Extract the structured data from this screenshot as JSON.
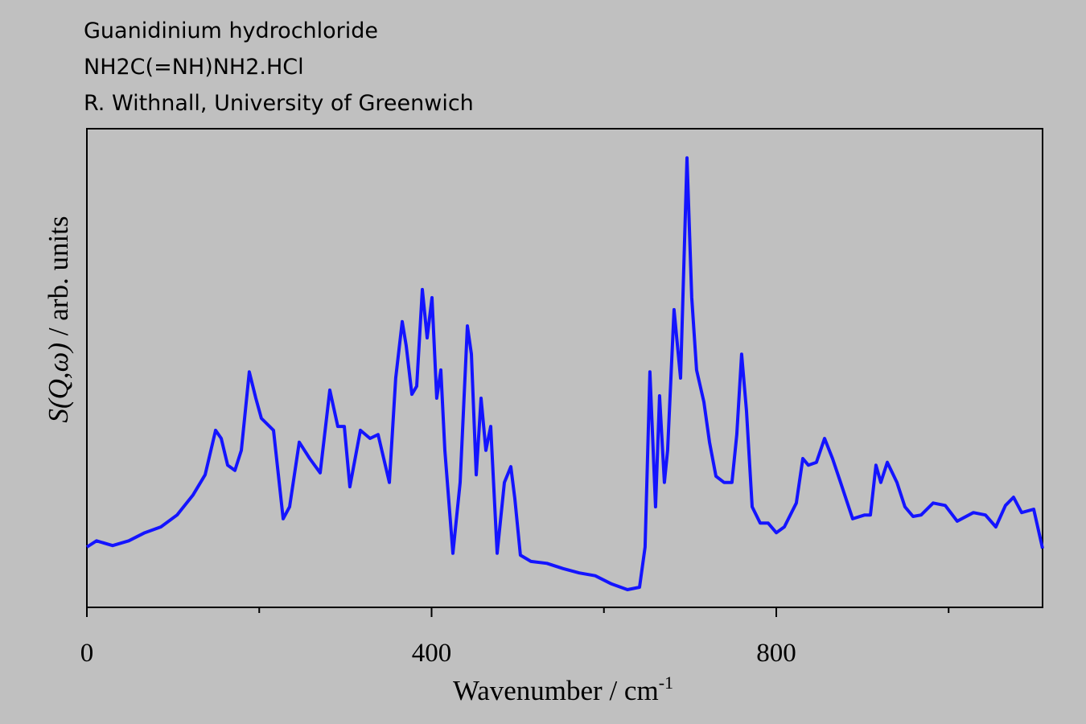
{
  "chart_data": {
    "type": "line",
    "title_lines": [
      "Guanidinium hydrochloride",
      "NH2C(=NH)NH2.HCl",
      "R. Withnall, University of Greenwich"
    ],
    "x_label": "Wavenumber / cm",
    "x_label_sup": "-1",
    "y_label_italic": "S(Q,ω)",
    "y_label_rest": " / arb. units",
    "xlim": [
      0,
      1109
    ],
    "ylim": [
      0,
      100
    ],
    "xticks": [
      0,
      400,
      800
    ],
    "xminor_ticks": [
      200,
      600,
      1000
    ],
    "series": [
      {
        "color": "#1414ff",
        "x": [
          0,
          11.2,
          29.9,
          48.5,
          67.2,
          85.9,
          104.6,
          123.2,
          137.2,
          149.4,
          155.9,
          163.4,
          171.8,
          179.2,
          188.5,
          196.0,
          202.5,
          216.6,
          227.8,
          235.2,
          246.4,
          258.6,
          270.7,
          281.9,
          291.2,
          298.7,
          305.2,
          317.4,
          328.6,
          337.9,
          351.0,
          358.4,
          365.9,
          370.6,
          377.1,
          382.7,
          389.3,
          394.9,
          400.5,
          406.0,
          410.7,
          415.4,
          424.7,
          433.1,
          441.5,
          446.2,
          451.8,
          457.4,
          463.0,
          468.6,
          476.1,
          484.5,
          492.0,
          496.6,
          503.1,
          515.3,
          533.9,
          552.6,
          571.3,
          589.9,
          608.6,
          627.3,
          641.3,
          647.8,
          653.4,
          659.9,
          664.6,
          670.2,
          673.9,
          681.4,
          688.9,
          696.4,
          701.9,
          707.5,
          716.0,
          722.5,
          730.0,
          739.3,
          748.6,
          754.2,
          759.8,
          765.4,
          772.0,
          781.3,
          790.6,
          800.0,
          809.3,
          823.3,
          830.8,
          837.3,
          846.6,
          856.0,
          865.3,
          874.6,
          888.6,
          902.6,
          909.2,
          915.7,
          921.3,
          928.8,
          940.0,
          949.3,
          958.7,
          968.0,
          982.0,
          996.0,
          1010.0,
          1028.7,
          1042.7,
          1054.8,
          1066.0,
          1075.3,
          1084.7,
          1098.7,
          1109
        ],
        "values": [
          12.6,
          13.9,
          12.9,
          13.9,
          15.6,
          16.8,
          19.3,
          23.5,
          27.7,
          37.0,
          35.3,
          29.7,
          28.6,
          32.8,
          49.2,
          43.7,
          39.5,
          37.0,
          18.5,
          21.0,
          34.5,
          31.1,
          28.1,
          45.4,
          37.8,
          37.8,
          25.2,
          37.0,
          35.3,
          36.1,
          26.1,
          47.9,
          59.7,
          54.6,
          44.5,
          46.2,
          66.4,
          56.3,
          64.7,
          43.7,
          49.6,
          32.8,
          11.3,
          26.1,
          58.8,
          52.9,
          27.7,
          43.7,
          32.8,
          37.8,
          11.3,
          26.1,
          29.4,
          22.7,
          10.9,
          9.6,
          9.2,
          8.1,
          7.2,
          6.6,
          4.9,
          3.7,
          4.2,
          12.6,
          49.2,
          21.0,
          44.2,
          26.1,
          32.8,
          62.2,
          47.9,
          93.9,
          64.7,
          49.6,
          42.9,
          34.5,
          27.4,
          26.1,
          26.1,
          36.1,
          52.9,
          41.2,
          21.0,
          17.6,
          17.6,
          15.6,
          16.8,
          21.8,
          31.1,
          29.7,
          30.3,
          35.3,
          31.1,
          26.1,
          18.5,
          19.3,
          19.3,
          29.7,
          26.1,
          30.3,
          26.1,
          21.0,
          19.0,
          19.3,
          21.8,
          21.3,
          18.0,
          19.8,
          19.3,
          16.8,
          21.3,
          23.0,
          19.8,
          20.5,
          12.3
        ]
      }
    ]
  }
}
